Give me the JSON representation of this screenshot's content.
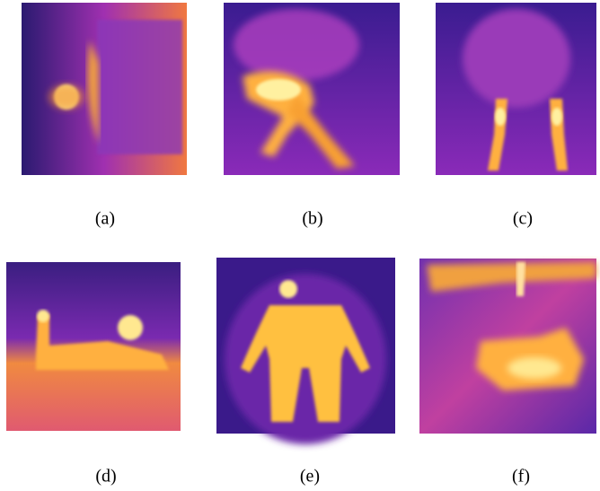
{
  "figure": {
    "panels": [
      {
        "label": "(a)"
      },
      {
        "label": "(b)"
      },
      {
        "label": "(c)"
      },
      {
        "label": "(d)"
      },
      {
        "label": "(e)"
      },
      {
        "label": "(f)"
      }
    ]
  }
}
